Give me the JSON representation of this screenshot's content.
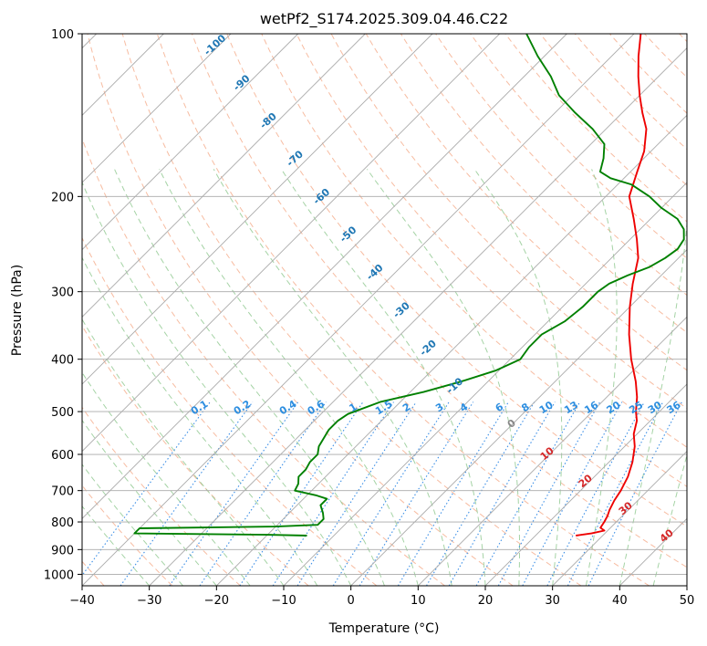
{
  "chart_data": {
    "type": "line",
    "subtype": "skew-T log-P diagram",
    "title": "wetPf2_S174.2025.309.04.46.C22",
    "xlabel": "Temperature (°C)",
    "ylabel": "Pressure (hPa)",
    "xlim": [
      -40,
      50
    ],
    "ylim": [
      1050,
      100
    ],
    "yscale": "log",
    "grid": true,
    "x_ticks": [
      -40,
      -30,
      -20,
      -10,
      0,
      10,
      20,
      30,
      40,
      50
    ],
    "x_tick_labels": [
      "−40",
      "−30",
      "−20",
      "−10",
      "0",
      "10",
      "20",
      "30",
      "40",
      "50"
    ],
    "y_ticks": [
      100,
      200,
      300,
      400,
      500,
      600,
      700,
      800,
      900,
      1000
    ],
    "y_tick_labels": [
      "100",
      "200",
      "300",
      "400",
      "500",
      "600",
      "700",
      "800",
      "900",
      "1000"
    ],
    "series": [
      {
        "role": "temperature",
        "color": "#ee0000",
        "points": [
          [
            26,
            848
          ],
          [
            28,
            840
          ],
          [
            29.5,
            830
          ],
          [
            28.5,
            820
          ],
          [
            28.2,
            800
          ],
          [
            27.8,
            780
          ],
          [
            27.2,
            760
          ],
          [
            26.5,
            730
          ],
          [
            26,
            700
          ],
          [
            25,
            660
          ],
          [
            23.5,
            620
          ],
          [
            21.5,
            580
          ],
          [
            19.5,
            550
          ],
          [
            18,
            520
          ],
          [
            16.5,
            500
          ],
          [
            14.5,
            470
          ],
          [
            12,
            440
          ],
          [
            8,
            400
          ],
          [
            4,
            360
          ],
          [
            0,
            320
          ],
          [
            -3,
            290
          ],
          [
            -6,
            260
          ],
          [
            -9,
            240
          ],
          [
            -12.5,
            220
          ],
          [
            -16.5,
            200
          ],
          [
            -19,
            180
          ],
          [
            -21,
            165
          ],
          [
            -24,
            150
          ],
          [
            -27,
            140
          ],
          [
            -30,
            130
          ],
          [
            -33,
            120
          ],
          [
            -36,
            110
          ],
          [
            -39,
            100
          ]
        ]
      },
      {
        "role": "dewpoint",
        "color": "#008000",
        "points": [
          [
            -14,
            848
          ],
          [
            -20,
            845
          ],
          [
            -40,
            840
          ],
          [
            -40,
            822
          ],
          [
            -20,
            816
          ],
          [
            -14,
            810
          ],
          [
            -14,
            790
          ],
          [
            -15,
            770
          ],
          [
            -16.5,
            745
          ],
          [
            -16.5,
            725
          ],
          [
            -18.5,
            715
          ],
          [
            -22.5,
            700
          ],
          [
            -23,
            680
          ],
          [
            -24,
            660
          ],
          [
            -24,
            640
          ],
          [
            -24.5,
            620
          ],
          [
            -24.5,
            600
          ],
          [
            -25.5,
            580
          ],
          [
            -26,
            560
          ],
          [
            -26.5,
            540
          ],
          [
            -26.5,
            520
          ],
          [
            -26,
            505
          ],
          [
            -23,
            480
          ],
          [
            -18,
            460
          ],
          [
            -14,
            440
          ],
          [
            -10.5,
            420
          ],
          [
            -8.5,
            400
          ],
          [
            -9,
            380
          ],
          [
            -9,
            360
          ],
          [
            -7.5,
            340
          ],
          [
            -7,
            320
          ],
          [
            -7,
            300
          ],
          [
            -6.5,
            290
          ],
          [
            -5,
            280
          ],
          [
            -3,
            270
          ],
          [
            -2,
            260
          ],
          [
            -1.5,
            250
          ],
          [
            -2,
            240
          ],
          [
            -3.5,
            230
          ],
          [
            -6,
            220
          ],
          [
            -10,
            210
          ],
          [
            -13.5,
            200
          ],
          [
            -18,
            190
          ],
          [
            -22,
            185
          ],
          [
            -24.5,
            180
          ],
          [
            -26,
            170
          ],
          [
            -28,
            160
          ],
          [
            -32,
            150
          ],
          [
            -37,
            140
          ],
          [
            -42,
            130
          ],
          [
            -46,
            120
          ],
          [
            -51,
            110
          ],
          [
            -56,
            100
          ]
        ]
      }
    ],
    "dry_adiabat_labels": [
      "-100",
      "-90",
      "-80",
      "-70",
      "-60",
      "-50",
      "-40",
      "-30",
      "-20",
      "-10"
    ],
    "mixing_ratio_labels": [
      "0.1",
      "0.2",
      "0.4",
      "0.6",
      "1",
      "1.5",
      "2",
      "3",
      "4",
      "6",
      "8",
      "10",
      "13",
      "16",
      "20",
      "25",
      "30",
      "36"
    ],
    "moist_adiabat_labels": [
      "0",
      "10",
      "20",
      "30",
      "40"
    ],
    "colors": {
      "temperature": "#ee0000",
      "dewpoint": "#008000",
      "isotherm": "#aaaaaa",
      "isobar": "#aaaaaa",
      "dry_adiabat": "#f4a582",
      "moist_adiabat": "#8fc88f",
      "mixing_ratio": "#3a8ee6",
      "dry_label": "#1f77b4",
      "moist_label": "#d62728"
    }
  }
}
